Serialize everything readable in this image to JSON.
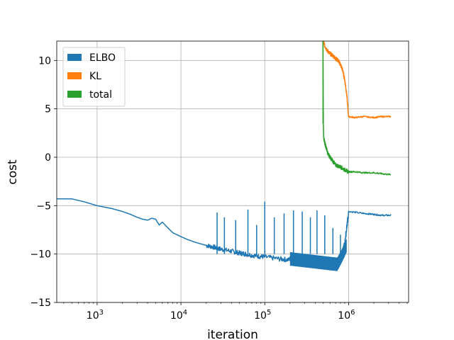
{
  "chart_data": {
    "type": "line",
    "xlabel": "iteration",
    "ylabel": "cost",
    "xscale": "log",
    "xlim": [
      330,
      5200000
    ],
    "ylim": [
      -15,
      12
    ],
    "grid": true,
    "legend_position": "top-left",
    "x_ticks": [
      {
        "value": 1000,
        "mant": "10",
        "exp": "3"
      },
      {
        "value": 10000,
        "mant": "10",
        "exp": "4"
      },
      {
        "value": 100000,
        "mant": "10",
        "exp": "5"
      },
      {
        "value": 1000000,
        "mant": "10",
        "exp": "6"
      }
    ],
    "y_ticks": [
      {
        "value": 10,
        "label": "10"
      },
      {
        "value": 5,
        "label": "5"
      },
      {
        "value": 0,
        "label": "0"
      },
      {
        "value": -5,
        "label": "−5"
      },
      {
        "value": -10,
        "label": "−10"
      },
      {
        "value": -15,
        "label": "−15"
      }
    ],
    "series": [
      {
        "name": "ELBO",
        "color": "#1f77b4",
        "x": [
          330,
          500,
          700,
          1000,
          1500,
          2000,
          2500,
          3000,
          3500,
          4000,
          4500,
          5000,
          5500,
          6000,
          7000,
          8000,
          10000,
          12000,
          15000,
          20000,
          25000,
          30000,
          40000,
          50000,
          60000,
          80000,
          100000,
          150000,
          200000,
          300000,
          400000,
          500000,
          600000,
          700000,
          800000,
          900000,
          1000000,
          1500000,
          2000000,
          2500000,
          3200000
        ],
        "y": [
          -4.3,
          -4.3,
          -4.6,
          -5.0,
          -5.3,
          -5.6,
          -5.9,
          -6.2,
          -6.4,
          -6.5,
          -6.3,
          -6.4,
          -7.0,
          -6.7,
          -7.3,
          -7.8,
          -8.2,
          -8.5,
          -8.8,
          -9.1,
          -9.3,
          -9.5,
          -9.7,
          -9.9,
          -10.0,
          -10.2,
          -10.3,
          -10.5,
          -10.6,
          -10.8,
          -11.0,
          -11.2,
          -11.1,
          -10.9,
          -10.5,
          -9.0,
          -5.6,
          -5.8,
          -5.9,
          -6.0,
          -6.0
        ],
        "spikes": [
          {
            "x": 27000,
            "y": -5.7
          },
          {
            "x": 33000,
            "y": -6.2
          },
          {
            "x": 45000,
            "y": -6.5
          },
          {
            "x": 63000,
            "y": -5.4
          },
          {
            "x": 80000,
            "y": -7.0
          },
          {
            "x": 100000,
            "y": -4.6
          },
          {
            "x": 130000,
            "y": -6.2
          },
          {
            "x": 170000,
            "y": -5.8
          },
          {
            "x": 220000,
            "y": -5.5
          },
          {
            "x": 280000,
            "y": -5.6
          },
          {
            "x": 350000,
            "y": -6.2
          },
          {
            "x": 420000,
            "y": -5.5
          },
          {
            "x": 520000,
            "y": -6.0
          },
          {
            "x": 650000,
            "y": -7.3
          },
          {
            "x": 800000,
            "y": -8.0
          }
        ]
      },
      {
        "name": "KL",
        "color": "#ff7f0e",
        "x": [
          500000,
          520000,
          560000,
          600000,
          650000,
          700000,
          750000,
          800000,
          850000,
          900000,
          950000,
          1000000,
          1200000,
          1500000,
          2000000,
          2500000,
          3200000
        ],
        "y": [
          12.0,
          11.5,
          11.0,
          10.7,
          10.5,
          10.2,
          10.0,
          9.6,
          9.0,
          8.0,
          6.5,
          4.2,
          4.1,
          4.2,
          4.1,
          4.2,
          4.2
        ]
      },
      {
        "name": "total",
        "color": "#2ca02c",
        "x": [
          495000,
          500000,
          505000,
          520000,
          540000,
          560000,
          600000,
          650000,
          700000,
          800000,
          900000,
          1000000,
          1200000,
          1500000,
          2000000,
          2500000,
          3200000
        ],
        "y": [
          12.0,
          3.5,
          2.0,
          1.5,
          1.0,
          0.5,
          0.0,
          -0.4,
          -0.8,
          -1.0,
          -1.3,
          -1.5,
          -1.5,
          -1.6,
          -1.6,
          -1.7,
          -1.8
        ]
      }
    ]
  }
}
